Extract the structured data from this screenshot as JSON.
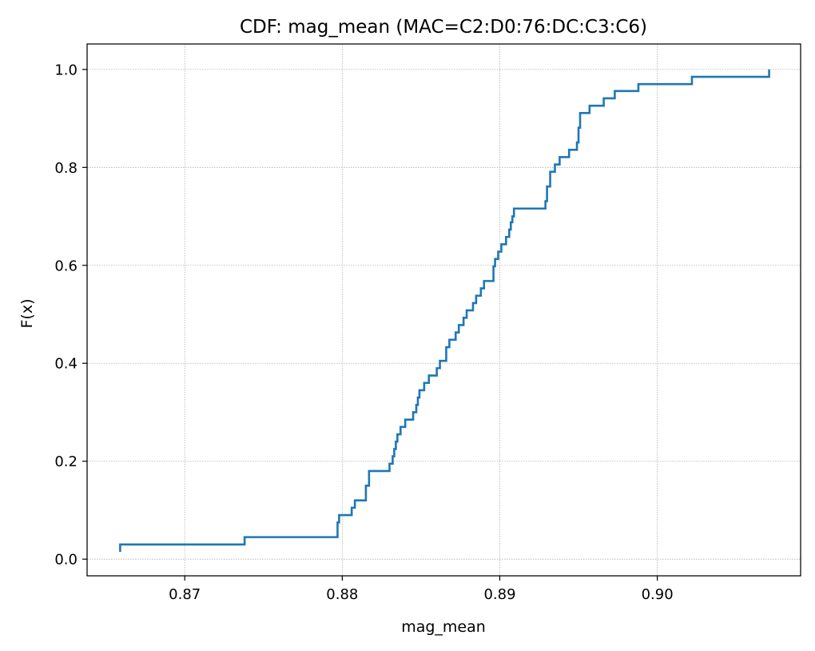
{
  "chart_data": {
    "type": "line",
    "subtype": "step-cdf",
    "title": "CDF: mag_mean (MAC=C2:D0:76:DC:C3:C6)",
    "xlabel": "mag_mean",
    "ylabel": "F(x)",
    "xlim": [
      0.8638,
      0.9091
    ],
    "ylim": [
      -0.034,
      1.052
    ],
    "xticks": [
      0.87,
      0.88,
      0.89,
      0.9
    ],
    "xtick_labels": [
      "0.87",
      "0.88",
      "0.89",
      "0.90"
    ],
    "yticks": [
      0.0,
      0.2,
      0.4,
      0.6,
      0.8,
      1.0
    ],
    "ytick_labels": [
      "0.0",
      "0.2",
      "0.4",
      "0.6",
      "0.8",
      "1.0"
    ],
    "grid": true,
    "line_color": "#1f77b4",
    "series": [
      {
        "x": [
          0.8659,
          0.8659,
          0.8738,
          0.8796,
          0.8797,
          0.8798,
          0.8806,
          0.8808,
          0.8815,
          0.8817,
          0.883,
          0.8832,
          0.8833,
          0.8834,
          0.8835,
          0.8837,
          0.884,
          0.8845,
          0.8847,
          0.8848,
          0.8849,
          0.8852,
          0.8855,
          0.886,
          0.8862,
          0.8866,
          0.8868,
          0.8872,
          0.8874,
          0.8877,
          0.8879,
          0.8883,
          0.8885,
          0.8888,
          0.889,
          0.8896,
          0.8897,
          0.8899,
          0.8901,
          0.8904,
          0.8906,
          0.8907,
          0.8908,
          0.8909,
          0.8929,
          0.893,
          0.8932,
          0.8935,
          0.8938,
          0.8944,
          0.8949,
          0.895,
          0.8951,
          0.8957,
          0.8966,
          0.8973,
          0.8988,
          0.9022,
          0.9071
        ],
        "y": [
          0.015,
          0.03,
          0.045,
          0.045,
          0.075,
          0.09,
          0.105,
          0.12,
          0.15,
          0.18,
          0.195,
          0.21,
          0.225,
          0.24,
          0.255,
          0.27,
          0.285,
          0.3,
          0.315,
          0.33,
          0.345,
          0.36,
          0.375,
          0.39,
          0.405,
          0.433,
          0.448,
          0.463,
          0.478,
          0.493,
          0.508,
          0.523,
          0.538,
          0.553,
          0.568,
          0.598,
          0.613,
          0.628,
          0.643,
          0.658,
          0.673,
          0.688,
          0.7,
          0.716,
          0.731,
          0.761,
          0.791,
          0.806,
          0.821,
          0.836,
          0.851,
          0.881,
          0.911,
          0.926,
          0.941,
          0.956,
          0.97,
          0.985,
          1.0
        ]
      }
    ]
  }
}
